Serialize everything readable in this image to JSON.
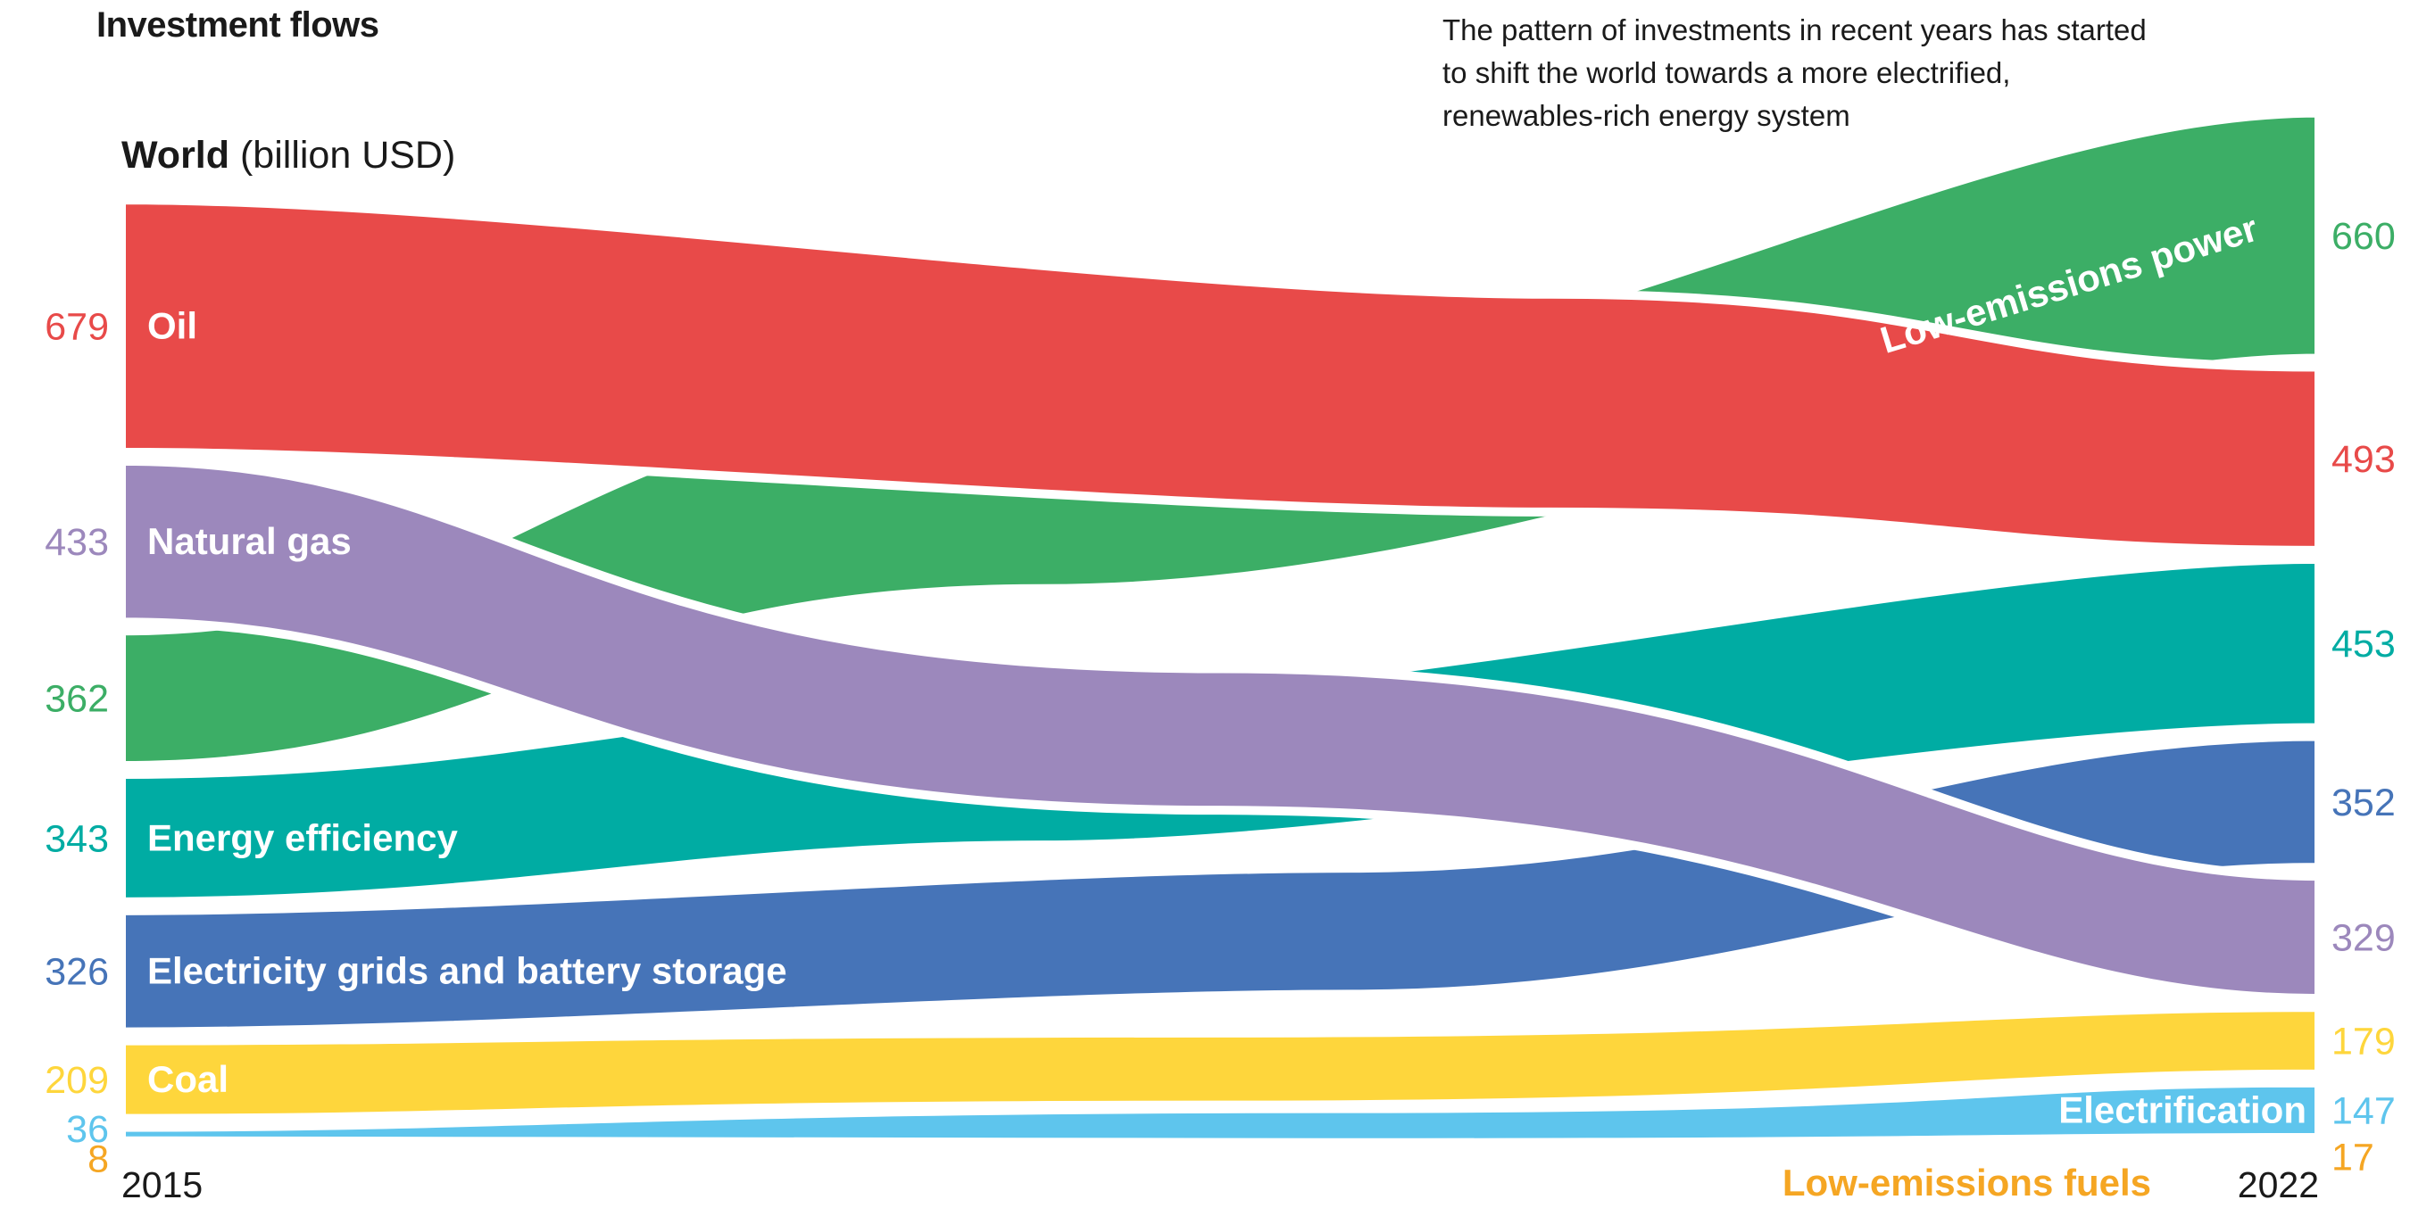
{
  "header": {
    "title": "Investment flows",
    "subtitle_lines": [
      "The pattern of investments in recent years has started",
      "to shift the world towards a more electrified,",
      "renewables-rich energy system"
    ],
    "region_bold": "World",
    "region_unit": " (billion USD)"
  },
  "chart_data": {
    "type": "area",
    "title": "Investment flows",
    "x": [
      "2015",
      "2022"
    ],
    "unit": "billion USD",
    "series": [
      {
        "name": "Oil",
        "values": [
          679,
          493
        ],
        "color": "#e84a49",
        "label_color": "#ffffff"
      },
      {
        "name": "Natural gas",
        "values": [
          433,
          329
        ],
        "color": "#9c88bc",
        "label_color": "#ffffff"
      },
      {
        "name": "Low-emissions power",
        "values": [
          362,
          660
        ],
        "color": "#3cae66",
        "label_color": "#ffffff"
      },
      {
        "name": "Energy efficiency",
        "values": [
          343,
          453
        ],
        "color": "#00aca3",
        "label_color": "#ffffff"
      },
      {
        "name": "Electricity grids and battery storage",
        "values": [
          326,
          352
        ],
        "color": "#4674b8",
        "label_color": "#ffffff"
      },
      {
        "name": "Coal",
        "values": [
          209,
          179
        ],
        "color": "#fed63c",
        "label_color": "#ffffff"
      },
      {
        "name": "Electrification",
        "values": [
          36,
          147
        ],
        "color": "#5ec5ed",
        "label_color": "#ffffff"
      },
      {
        "name": "Low-emissions fuels",
        "values": [
          8,
          17
        ],
        "color": "#f5a623",
        "label_color": "#f5a623"
      }
    ]
  }
}
